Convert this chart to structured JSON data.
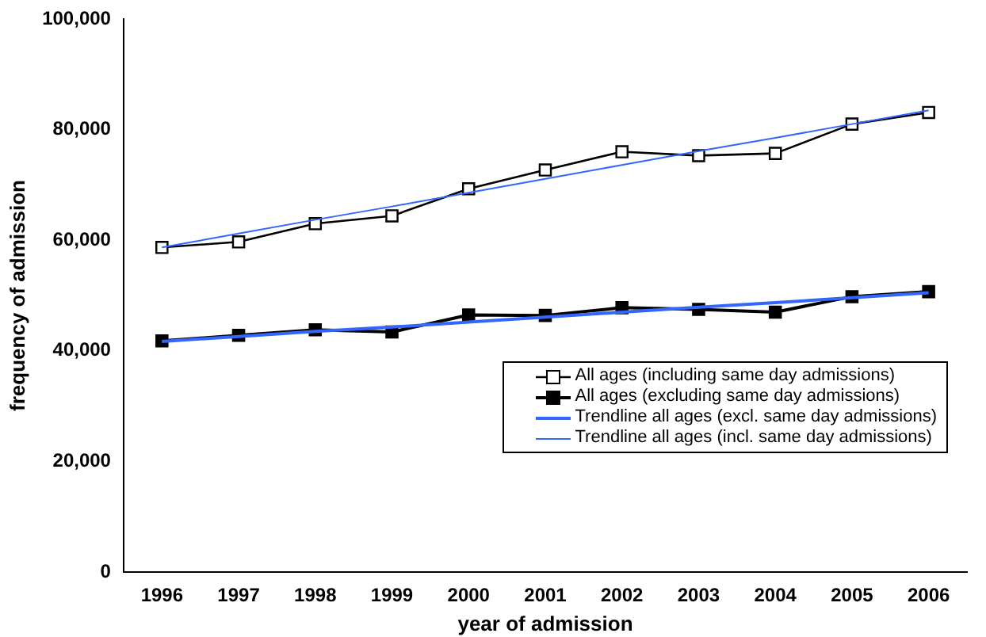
{
  "chart_data": {
    "type": "line",
    "xlabel": "year of admission",
    "ylabel": "frequency of admission",
    "categories": [
      "1996",
      "1997",
      "1998",
      "1999",
      "2000",
      "2001",
      "2002",
      "2003",
      "2004",
      "2005",
      "2006"
    ],
    "series": [
      {
        "name": "All ages (including same day admissions)",
        "color": "#000000",
        "marker": "square",
        "values": [
          58700,
          59700,
          63000,
          64400,
          69300,
          72700,
          76000,
          75300,
          75700,
          81000,
          83100
        ]
      },
      {
        "name": "All ages (excluding same day admissions)",
        "color": "#000000",
        "marker": "square",
        "values": [
          41800,
          42800,
          43800,
          43400,
          46500,
          46400,
          47800,
          47500,
          47000,
          49800,
          50700
        ]
      },
      {
        "name": "Trendline all ages (excl. same day admissions)",
        "color": "#3366ff",
        "marker": "none",
        "values": [
          41700,
          42600,
          43500,
          44300,
          45200,
          46100,
          47000,
          47900,
          48700,
          49600,
          50500
        ]
      },
      {
        "name": "Trendline all ages (incl. same day admissions)",
        "color": "#3366ff",
        "marker": "none",
        "values": [
          58700,
          61200,
          63700,
          66100,
          68600,
          71100,
          73600,
          76100,
          78500,
          81000,
          83500
        ]
      }
    ],
    "ylim": [
      0,
      100000
    ],
    "yticks": [
      {
        "value": 0,
        "label": "0"
      },
      {
        "value": 20000,
        "label": "20,000"
      },
      {
        "value": 40000,
        "label": "40,000"
      },
      {
        "value": 60000,
        "label": "60,000"
      },
      {
        "value": 80000,
        "label": "80,000"
      },
      {
        "value": 100000,
        "label": "100,000"
      }
    ],
    "grid": false,
    "legend": "right",
    "line_style": "solid"
  }
}
